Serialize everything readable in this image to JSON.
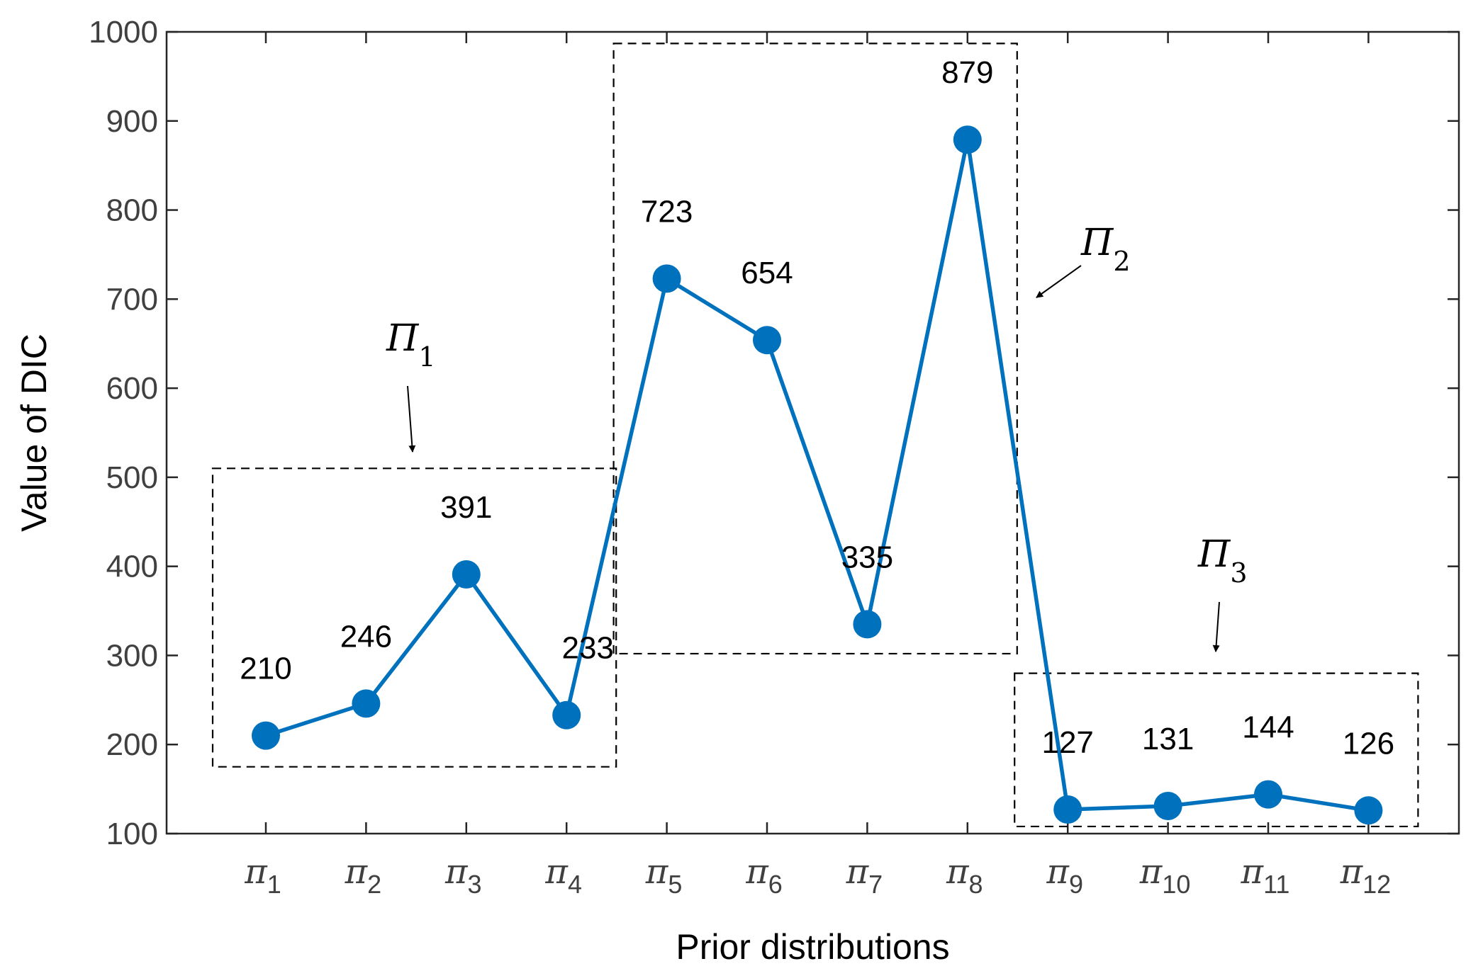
{
  "chart_data": {
    "type": "line",
    "title": "",
    "xlabel": "Prior distributions",
    "ylabel": "Value of DIC",
    "ylim": [
      100,
      1000
    ],
    "yticks": [
      100,
      200,
      300,
      400,
      500,
      600,
      700,
      800,
      900,
      1000
    ],
    "grid": false,
    "categories": [
      {
        "base": "π",
        "sub": "1"
      },
      {
        "base": "π",
        "sub": "2"
      },
      {
        "base": "π",
        "sub": "3"
      },
      {
        "base": "π",
        "sub": "4"
      },
      {
        "base": "π",
        "sub": "5"
      },
      {
        "base": "π",
        "sub": "6"
      },
      {
        "base": "π",
        "sub": "7"
      },
      {
        "base": "π",
        "sub": "8"
      },
      {
        "base": "π",
        "sub": "9"
      },
      {
        "base": "π",
        "sub": "10"
      },
      {
        "base": "π",
        "sub": "11"
      },
      {
        "base": "π",
        "sub": "12"
      }
    ],
    "series": [
      {
        "values": [
          210,
          246,
          391,
          233,
          723,
          654,
          335,
          879,
          127,
          131,
          144,
          126
        ],
        "color": "#0072BD"
      }
    ],
    "data_labels": [
      "210",
      "246",
      "391",
      "233",
      "723",
      "654",
      "335",
      "879",
      "127",
      "131",
      "144",
      "126"
    ],
    "groups": [
      {
        "base": "Π",
        "sub": "1",
        "members": [
          1,
          2,
          3,
          4
        ],
        "y_range": [
          175,
          510
        ]
      },
      {
        "base": "Π",
        "sub": "2",
        "members": [
          5,
          6,
          7,
          8
        ],
        "y_range": [
          302,
          987
        ]
      },
      {
        "base": "Π",
        "sub": "3",
        "members": [
          9,
          10,
          11,
          12
        ],
        "y_range": [
          108,
          280
        ]
      }
    ]
  }
}
